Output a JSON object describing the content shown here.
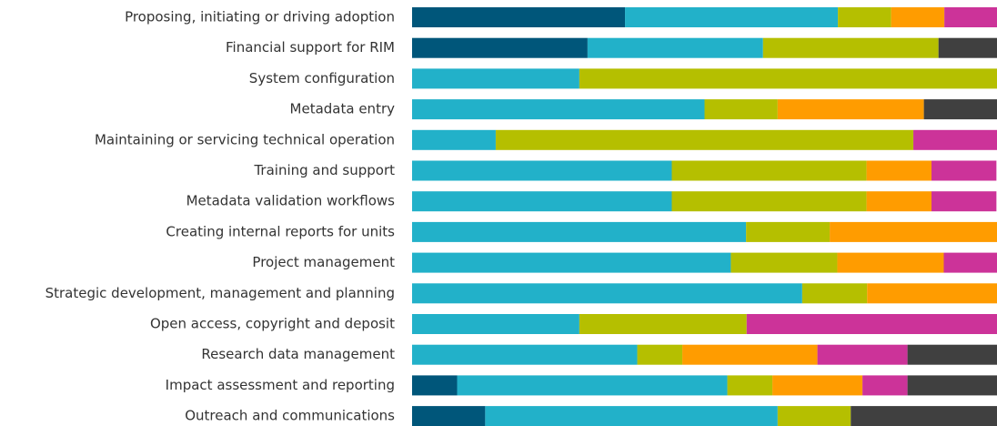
{
  "chart_data": {
    "type": "stacked-bar-horizontal",
    "categories": [
      "Proposing, initiating or driving adoption",
      "Financial support for RIM",
      "System configuration",
      "Metadata entry",
      "Maintaining or servicing technical operation",
      "Training and support",
      "Metadata validation workflows",
      "Creating internal reports for units",
      "Project management",
      "Strategic development, management and planning",
      "Open access, copyright and deposit",
      "Research data management",
      "Impact assessment and reporting",
      "Outreach and communications"
    ],
    "series": [
      {
        "color": "#00567a",
        "values": [
          36.4,
          30,
          0,
          0,
          0,
          0,
          0,
          0,
          0,
          0,
          0,
          0,
          7.7,
          12.5
        ]
      },
      {
        "color": "#22b1c9",
        "values": [
          36.4,
          30,
          28.6,
          50,
          14.3,
          44.4,
          44.4,
          57.1,
          54.5,
          66.7,
          28.6,
          38.5,
          46.2,
          50
        ]
      },
      {
        "color": "#b5bf00",
        "values": [
          9.1,
          30,
          71.4,
          12.5,
          71.4,
          33.3,
          33.3,
          14.3,
          18.2,
          11.1,
          28.6,
          7.7,
          7.7,
          12.5
        ]
      },
      {
        "color": "#ff9c00",
        "values": [
          9.1,
          0,
          0,
          25,
          0,
          11.1,
          11.1,
          28.6,
          18.2,
          22.2,
          0,
          23.1,
          15.4,
          0
        ]
      },
      {
        "color": "#cc3399",
        "values": [
          9.1,
          0,
          0,
          0,
          14.3,
          11.1,
          11.1,
          0,
          9.1,
          0,
          42.9,
          15.4,
          7.7,
          0
        ]
      },
      {
        "color": "#404040",
        "values": [
          0,
          10,
          0,
          12.5,
          0,
          0,
          0,
          0,
          0,
          0,
          0,
          15.4,
          15.4,
          25
        ]
      }
    ],
    "xlim": [
      0,
      100
    ]
  }
}
